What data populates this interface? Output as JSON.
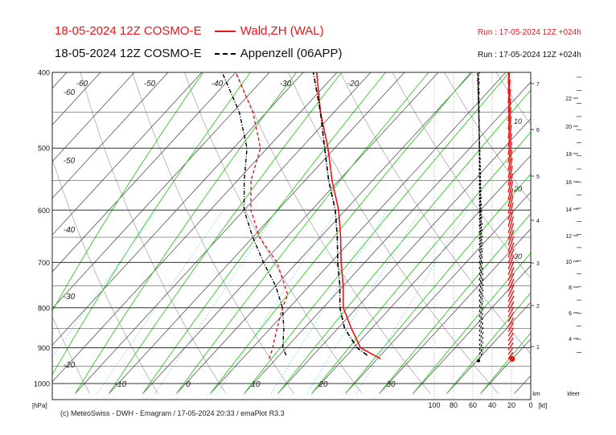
{
  "header": {
    "line1_model": "18-05-2024 12Z COSMO-E",
    "line1_station": "Wald,ZH (WAL)",
    "line1_run": "Run : 17-05-2024 12Z +024h",
    "line2_model": "18-05-2024 12Z COSMO-E",
    "line2_station": "Appenzell (06APP)",
    "line2_run": "Run : 17-05-2024 12Z +024h"
  },
  "footer": {
    "credit": "(c) MeteoSwiss - DWH - Emagram / 17-05-2024  20:33 / emaPlot R3.3"
  },
  "chart_data": {
    "type": "line",
    "pressure_unit": "[hPa]",
    "pressure_ticks": [
      400,
      500,
      600,
      700,
      800,
      900,
      1000
    ],
    "pressure_range": [
      400,
      1030
    ],
    "y_scale": "log",
    "isotherm_labels_top": [
      "-60",
      "-50",
      "-40",
      "-30",
      "-20"
    ],
    "isotherm_labels_left": [
      "-60",
      "-50",
      "-40",
      "-30",
      "-20"
    ],
    "isotherm_labels_bottom": [
      "-10",
      "0",
      "10",
      "20",
      "30"
    ],
    "wind_axis_labels": [
      "100",
      "80",
      "60",
      "40",
      "20",
      "0"
    ],
    "wind_axis_unit": "[kt]",
    "km_label": "km",
    "km_ticks": [
      "1",
      "2",
      "3",
      "4",
      "5",
      "6",
      "7"
    ],
    "kfeet_label": "kfeet",
    "kfeet_ticks": [
      "4",
      "6",
      "8",
      "10",
      "12",
      "14",
      "16",
      "18",
      "20",
      "22"
    ],
    "hodograph_labels": [
      "10",
      "20",
      "30"
    ],
    "colors": {
      "wald": "#e8161b",
      "appenzell": "#000000",
      "dry_adiabat": "#4a4a4a",
      "moist_adiabat": "#2ecc1f",
      "mixing_ratio": "#7fd4ee",
      "grid": "#555555"
    },
    "series": [
      {
        "name": "Wald,ZH (WAL)",
        "temperature": [
          [
            930,
            20.5
          ],
          [
            900,
            16
          ],
          [
            850,
            12
          ],
          [
            800,
            8
          ],
          [
            750,
            5
          ],
          [
            700,
            1.5
          ],
          [
            650,
            -2
          ],
          [
            600,
            -6
          ],
          [
            550,
            -11
          ],
          [
            500,
            -16
          ],
          [
            450,
            -22
          ],
          [
            400,
            -28
          ]
        ],
        "dewpoint": [
          [
            930,
            4
          ],
          [
            900,
            3
          ],
          [
            850,
            1
          ],
          [
            800,
            -1
          ],
          [
            770,
            -2
          ],
          [
            700,
            -8
          ],
          [
            650,
            -14
          ],
          [
            600,
            -19
          ],
          [
            550,
            -23
          ],
          [
            500,
            -26
          ],
          [
            450,
            -32
          ],
          [
            400,
            -40
          ]
        ]
      },
      {
        "name": "Appenzell (06APP)",
        "temperature": [
          [
            920,
            18
          ],
          [
            900,
            15.5
          ],
          [
            850,
            11
          ],
          [
            800,
            7.5
          ],
          [
            750,
            4.5
          ],
          [
            700,
            1
          ],
          [
            650,
            -2.5
          ],
          [
            600,
            -6.5
          ],
          [
            550,
            -11.5
          ],
          [
            500,
            -16.5
          ],
          [
            450,
            -22
          ],
          [
            400,
            -28.5
          ]
        ],
        "dewpoint": [
          [
            920,
            6
          ],
          [
            900,
            4.5
          ],
          [
            850,
            2
          ],
          [
            800,
            -1
          ],
          [
            750,
            -5
          ],
          [
            700,
            -10
          ],
          [
            650,
            -15
          ],
          [
            600,
            -20
          ],
          [
            550,
            -24
          ],
          [
            500,
            -28
          ],
          [
            450,
            -34
          ],
          [
            400,
            -42
          ]
        ]
      }
    ]
  }
}
